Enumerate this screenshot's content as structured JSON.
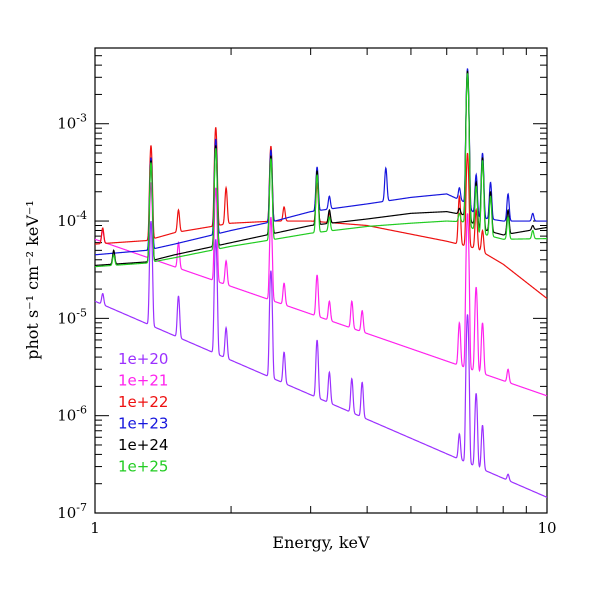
{
  "chart_data": {
    "type": "line",
    "title": "",
    "xlabel": "Energy, keV",
    "ylabel": "phot s⁻¹ cm⁻² keV⁻¹",
    "xscale": "log",
    "yscale": "log",
    "xlim": [
      1,
      10
    ],
    "ylim": [
      1e-07,
      0.006
    ],
    "grid": false,
    "legend": "lower-left",
    "x_ticks": [
      {
        "value": 1,
        "label": "1"
      },
      {
        "value": 10,
        "label": "10"
      }
    ],
    "y_ticks": [
      {
        "value": 1e-07,
        "base": "10",
        "exp": "-7"
      },
      {
        "value": 1e-06,
        "base": "10",
        "exp": "-6"
      },
      {
        "value": 1e-05,
        "base": "10",
        "exp": "-5"
      },
      {
        "value": 0.0001,
        "base": "10",
        "exp": "-4"
      },
      {
        "value": 0.001,
        "base": "10",
        "exp": "-3"
      }
    ],
    "series": [
      {
        "name": "1e+20",
        "color": "#9b30ff",
        "continuum": [
          [
            1,
            1.5e-05
          ],
          [
            10,
            1.45e-07
          ]
        ],
        "lines": [
          [
            1.04,
            1.8e-05
          ],
          [
            1.33,
            0.0001
          ],
          [
            1.53,
            1.7e-05
          ],
          [
            1.85,
            6.5e-05
          ],
          [
            1.95,
            8e-06
          ],
          [
            2.45,
            3.1e-05
          ],
          [
            2.62,
            4.5e-06
          ],
          [
            3.1,
            6e-06
          ],
          [
            3.3,
            2.8e-06
          ],
          [
            3.7,
            2.4e-06
          ],
          [
            3.9,
            2.2e-06
          ],
          [
            6.4,
            6.5e-07
          ],
          [
            6.67,
            1.1e-05
          ],
          [
            6.97,
            1.7e-06
          ],
          [
            7.2,
            8e-07
          ],
          [
            8.2,
            2.5e-07
          ]
        ]
      },
      {
        "name": "1e+21",
        "color": "#ff22ee",
        "continuum": [
          [
            1,
            6.5e-05
          ],
          [
            10,
            1.6e-06
          ]
        ],
        "lines": [
          [
            1.04,
            8e-05
          ],
          [
            1.33,
            0.00025
          ],
          [
            1.53,
            6e-05
          ],
          [
            1.85,
            0.00022
          ],
          [
            1.95,
            3.9e-05
          ],
          [
            2.45,
            0.00011
          ],
          [
            2.62,
            2.3e-05
          ],
          [
            3.1,
            2.8e-05
          ],
          [
            3.3,
            1.5e-05
          ],
          [
            3.7,
            1.5e-05
          ],
          [
            3.9,
            1.2e-05
          ],
          [
            6.4,
            9e-06
          ],
          [
            6.67,
            0.00012
          ],
          [
            6.97,
            2.1e-05
          ],
          [
            7.2,
            9e-06
          ],
          [
            8.2,
            3e-06
          ]
        ]
      },
      {
        "name": "1e+22",
        "color": "#ee1111",
        "continuum": [
          [
            1,
            5.8e-05
          ],
          [
            1.3,
            6.3e-05
          ],
          [
            1.5,
            7.6e-05
          ],
          [
            2,
            9.5e-05
          ],
          [
            2.5,
            0.0001
          ],
          [
            3,
            0.0001
          ],
          [
            4,
            9e-05
          ],
          [
            6,
            6.2e-05
          ],
          [
            7,
            5.2e-05
          ],
          [
            8,
            3.6e-05
          ],
          [
            10,
            1.6e-05
          ]
        ],
        "lines": [
          [
            1.04,
            8.5e-05
          ],
          [
            1.33,
            0.0006
          ],
          [
            1.53,
            0.00013
          ],
          [
            1.85,
            0.00092
          ],
          [
            1.95,
            0.00022
          ],
          [
            2.45,
            0.00059
          ],
          [
            2.62,
            0.00014
          ],
          [
            3.1,
            0.00024
          ],
          [
            3.3,
            0.00012
          ],
          [
            6.4,
            0.00018
          ],
          [
            6.67,
            0.0005
          ],
          [
            6.97,
            0.00013
          ],
          [
            7.2,
            8e-05
          ],
          [
            8.2,
            2.1e-05
          ]
        ]
      },
      {
        "name": "1e+23",
        "color": "#1515dd",
        "continuum": [
          [
            1,
            4.5e-05
          ],
          [
            1.3,
            5e-05
          ],
          [
            1.5,
            5.8e-05
          ],
          [
            2,
            8e-05
          ],
          [
            2.5,
            0.0001
          ],
          [
            3,
            0.000125
          ],
          [
            4,
            0.00015
          ],
          [
            5,
            0.000175
          ],
          [
            6,
            0.00019
          ],
          [
            6.6,
            0.000155
          ],
          [
            7,
            0.00011
          ],
          [
            8,
            0.0001
          ],
          [
            10,
            0.0001
          ]
        ],
        "lines": [
          [
            1.33,
            0.00045
          ],
          [
            1.85,
            0.0007
          ],
          [
            2.45,
            0.00054
          ],
          [
            3.1,
            0.00036
          ],
          [
            3.3,
            0.00018
          ],
          [
            4.4,
            0.00035
          ],
          [
            6.4,
            0.00022
          ],
          [
            6.67,
            0.0037
          ],
          [
            6.97,
            0.0003
          ],
          [
            7.2,
            0.0005
          ],
          [
            7.5,
            0.00025
          ],
          [
            8.2,
            0.00019
          ],
          [
            9.3,
            0.00012
          ]
        ]
      },
      {
        "name": "1e+24",
        "color": "#000000",
        "continuum": [
          [
            1,
            3.5e-05
          ],
          [
            1.3,
            3.8e-05
          ],
          [
            1.5,
            4.5e-05
          ],
          [
            2,
            6e-05
          ],
          [
            2.5,
            7.5e-05
          ],
          [
            3,
            9e-05
          ],
          [
            4,
            0.000105
          ],
          [
            5,
            0.00012
          ],
          [
            6,
            0.000125
          ],
          [
            6.6,
            0.000115
          ],
          [
            7,
            8.5e-05
          ],
          [
            8,
            7.2e-05
          ],
          [
            10,
            8.6e-05
          ]
        ],
        "lines": [
          [
            1.1,
            5e-05
          ],
          [
            1.33,
            0.00042
          ],
          [
            1.85,
            0.0006
          ],
          [
            2.45,
            0.00047
          ],
          [
            3.1,
            0.00033
          ],
          [
            3.3,
            0.00013
          ],
          [
            3.7,
            9e-05
          ],
          [
            6.4,
            0.000135
          ],
          [
            6.67,
            0.0035
          ],
          [
            6.97,
            0.00025
          ],
          [
            7.2,
            0.00045
          ],
          [
            7.5,
            0.0002
          ],
          [
            8.2,
            0.00013
          ],
          [
            9.3,
            9e-05
          ]
        ]
      },
      {
        "name": "1e+25",
        "color": "#22cc22",
        "continuum": [
          [
            1,
            3.4e-05
          ],
          [
            1.3,
            3.7e-05
          ],
          [
            1.5,
            4.2e-05
          ],
          [
            2,
            5.5e-05
          ],
          [
            2.5,
            6.5e-05
          ],
          [
            3,
            7.5e-05
          ],
          [
            4,
            8.8e-05
          ],
          [
            5,
            9.5e-05
          ],
          [
            6,
            0.0001
          ],
          [
            6.6,
            9.8e-05
          ],
          [
            7,
            7.6e-05
          ],
          [
            8,
            6.5e-05
          ],
          [
            10,
            6.6e-05
          ]
        ],
        "lines": [
          [
            1.1,
            4.5e-05
          ],
          [
            1.33,
            0.0004
          ],
          [
            1.85,
            0.00056
          ],
          [
            2.45,
            0.00044
          ],
          [
            3.1,
            0.0003
          ],
          [
            3.3,
            0.00011
          ],
          [
            3.7,
            8e-05
          ],
          [
            6.4,
            0.00012
          ],
          [
            6.67,
            0.0033
          ],
          [
            6.97,
            0.00023
          ],
          [
            7.2,
            0.00042
          ],
          [
            7.5,
            0.00018
          ],
          [
            8.2,
            0.00011
          ],
          [
            9.3,
            8e-05
          ]
        ]
      }
    ]
  }
}
